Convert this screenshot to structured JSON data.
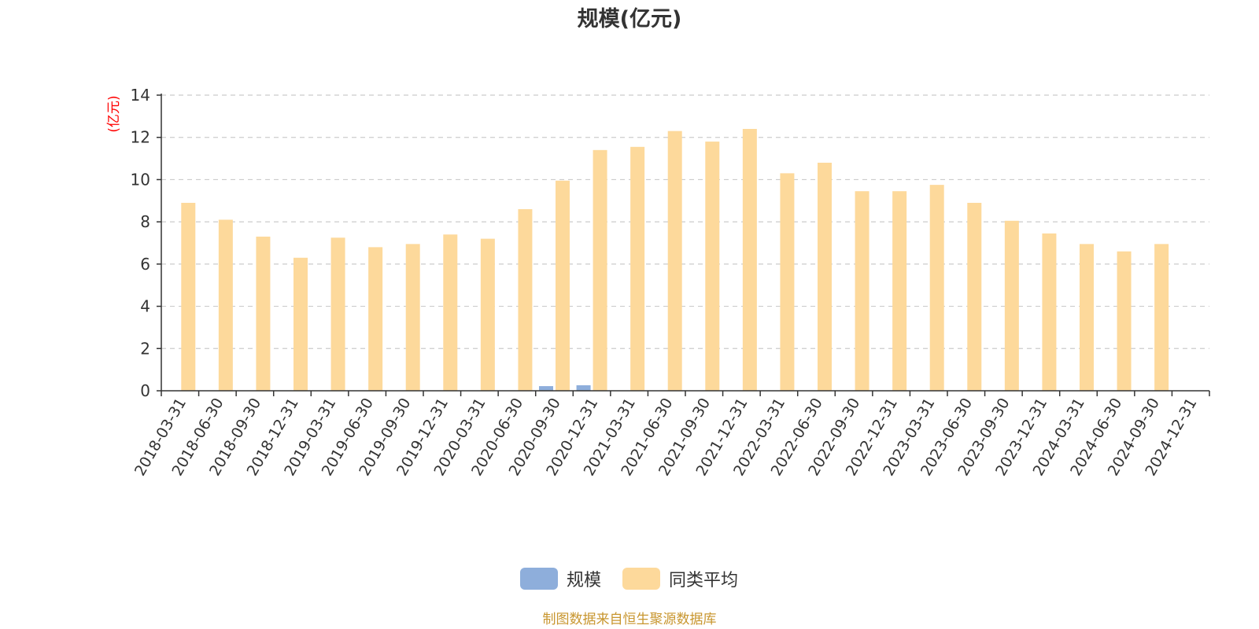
{
  "chart_data": {
    "type": "bar",
    "title": "规模(亿元)",
    "ylabel": "(亿元)",
    "xlabel": "",
    "ylim": [
      0,
      14
    ],
    "yticks": [
      0,
      2,
      4,
      6,
      8,
      10,
      12,
      14
    ],
    "grid": true,
    "legend_position": "bottom",
    "categories": [
      "2018-03-31",
      "2018-06-30",
      "2018-09-30",
      "2018-12-31",
      "2019-03-31",
      "2019-06-30",
      "2019-09-30",
      "2019-12-31",
      "2020-03-31",
      "2020-06-30",
      "2020-09-30",
      "2020-12-31",
      "2021-03-31",
      "2021-06-30",
      "2021-09-30",
      "2021-12-31",
      "2022-03-31",
      "2022-06-30",
      "2022-09-30",
      "2022-12-31",
      "2023-03-31",
      "2023-06-30",
      "2023-09-30",
      "2023-12-31",
      "2024-03-31",
      "2024-06-30",
      "2024-09-30",
      "2024-12-31"
    ],
    "series": [
      {
        "name": "规模",
        "color": "#8eaedb",
        "values": [
          0,
          0,
          0,
          0,
          0,
          0,
          0,
          0,
          0,
          0,
          0.22,
          0.26,
          0,
          0,
          0,
          0,
          0,
          0,
          0,
          0,
          0,
          0,
          0,
          0,
          0,
          0,
          0,
          0
        ]
      },
      {
        "name": "同类平均",
        "color": "#fdd99b",
        "values": [
          8.9,
          8.1,
          7.3,
          6.3,
          7.25,
          6.8,
          6.95,
          7.4,
          7.2,
          8.6,
          9.95,
          11.4,
          11.55,
          12.3,
          11.8,
          12.4,
          10.3,
          10.8,
          9.45,
          9.45,
          9.75,
          8.9,
          8.05,
          7.45,
          6.95,
          6.6,
          6.95,
          0
        ]
      }
    ]
  },
  "source": {
    "text": "制图数据来自恒生聚源数据库",
    "color": "#c8962f"
  }
}
